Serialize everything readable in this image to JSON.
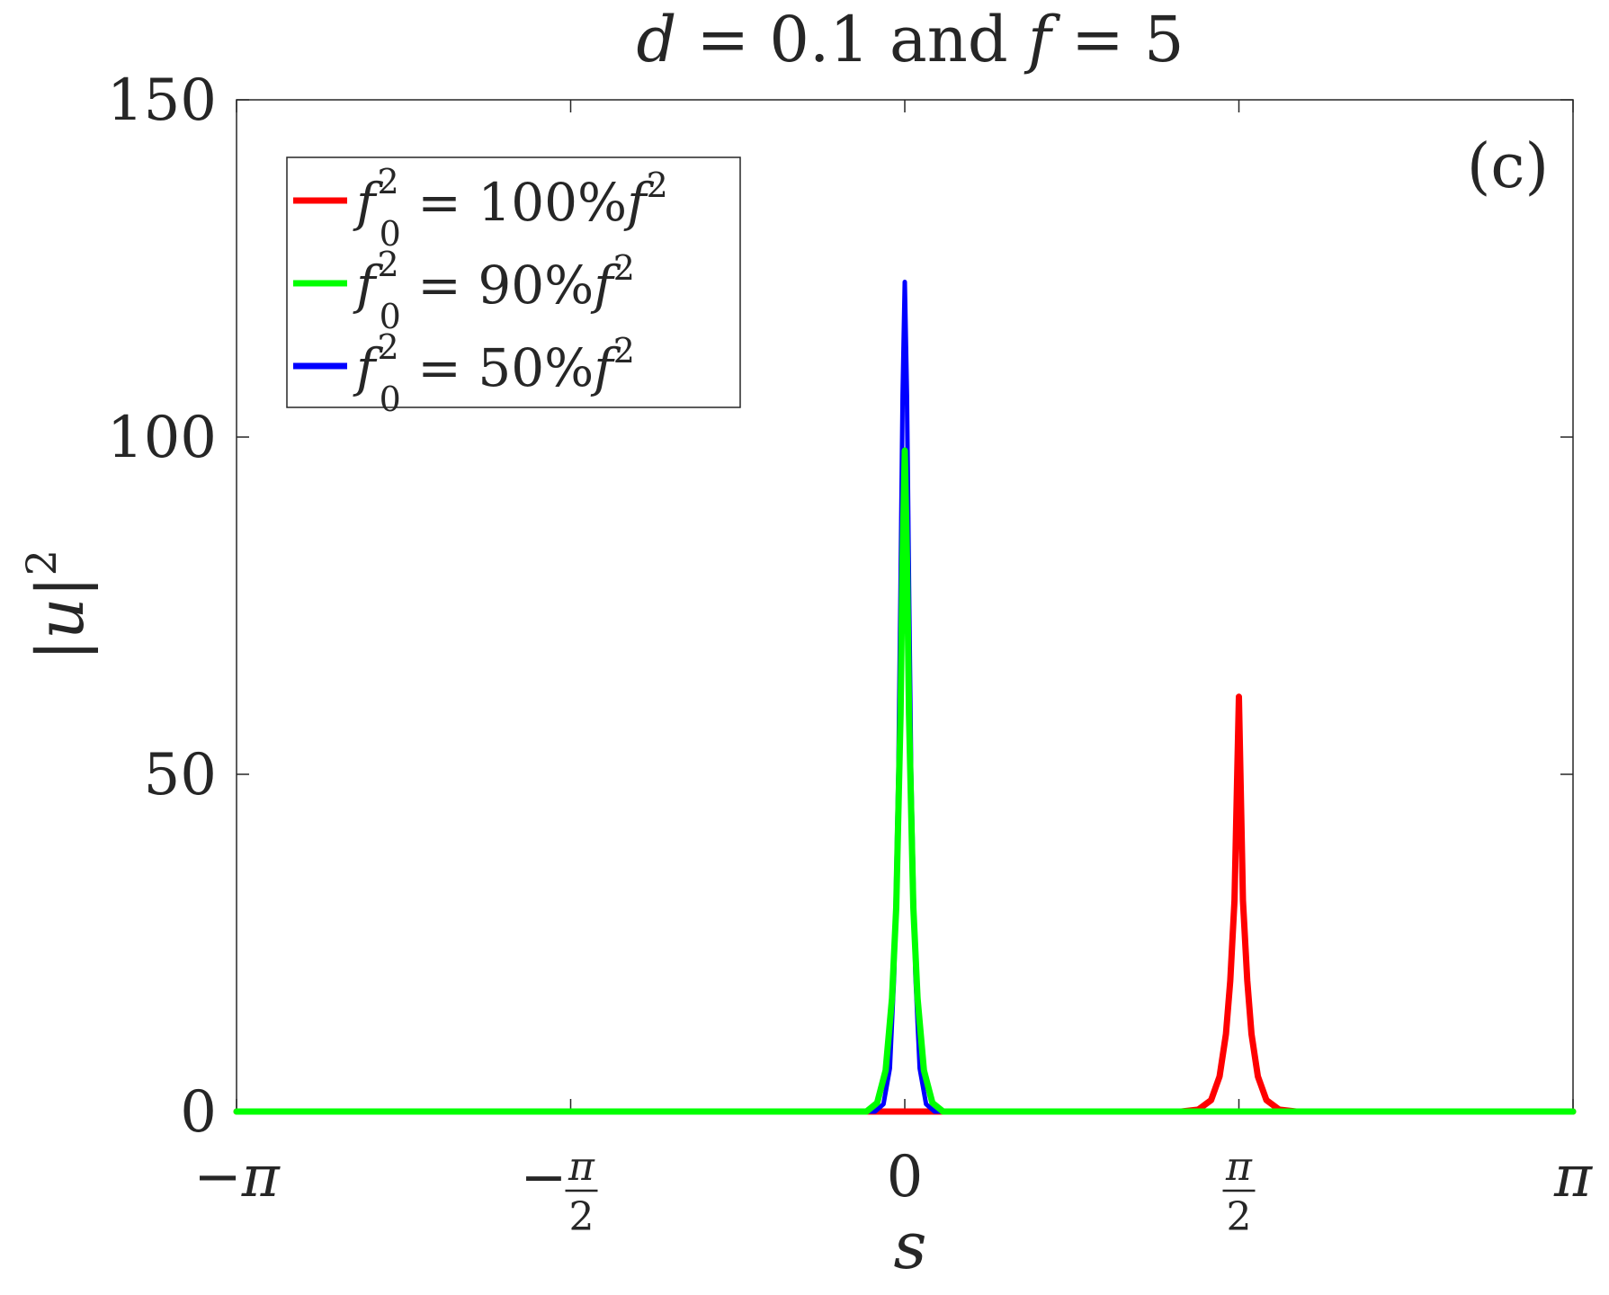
{
  "chart_data": {
    "type": "line",
    "title": {
      "prefix_var": "d",
      "prefix_eq": " = 0.1",
      "connector": " and ",
      "suffix_var": "f",
      "suffix_eq": " = 5"
    },
    "panel_label": "(c)",
    "xlabel": "s",
    "ylabel": {
      "base": "|u|",
      "exponent": "2"
    },
    "xlim": [
      -3.14159,
      3.14159
    ],
    "ylim": [
      0,
      150
    ],
    "xticks": [
      {
        "value": -3.14159,
        "label": "−π"
      },
      {
        "value": -1.5708,
        "label_sign": "−",
        "label_num": "π",
        "label_den": "2"
      },
      {
        "value": 0,
        "label": "0"
      },
      {
        "value": 1.5708,
        "label_num": "π",
        "label_den": "2"
      },
      {
        "value": 3.14159,
        "label": "π"
      }
    ],
    "yticks": [
      {
        "value": 0,
        "label": "0"
      },
      {
        "value": 50,
        "label": "50"
      },
      {
        "value": 100,
        "label": "100"
      },
      {
        "value": 150,
        "label": "150"
      }
    ],
    "grid": false,
    "legend_position": "top-left",
    "series": [
      {
        "name_var": "f",
        "name_sub": "0",
        "name_sup": "2",
        "name_rest": " = 100%",
        "name_var2": "f",
        "name_sup2": "2",
        "color": "#ff0000",
        "x": [
          -3.14159,
          1.3,
          1.38,
          1.44,
          1.48,
          1.51,
          1.53,
          1.55,
          1.5708,
          1.59,
          1.61,
          1.63,
          1.66,
          1.7,
          1.76,
          1.84,
          3.14159
        ],
        "y": [
          0,
          0,
          0.3,
          1.7,
          5.2,
          11.5,
          19.4,
          31.3,
          61.5,
          31.3,
          19.4,
          11.5,
          5.2,
          1.7,
          0.3,
          0,
          0
        ]
      },
      {
        "name_var": "f",
        "name_sub": "0",
        "name_sup": "2",
        "name_rest": " = 90%",
        "name_var2": "f",
        "name_sup2": "2",
        "color": "#00ff00",
        "x": [
          -3.14159,
          -0.18,
          -0.13,
          -0.09,
          -0.06,
          -0.04,
          -0.02,
          -0.01,
          0,
          0.01,
          0.02,
          0.04,
          0.06,
          0.09,
          0.13,
          0.18,
          3.14159
        ],
        "y": [
          0,
          0,
          1.3,
          6.1,
          16.8,
          30.3,
          58.9,
          82.1,
          98,
          82.1,
          58.9,
          30.3,
          16.8,
          6.1,
          1.3,
          0,
          0
        ]
      },
      {
        "name_var": "f",
        "name_sub": "0",
        "name_sup": "2",
        "name_rest": " = 50%",
        "name_var2": "f",
        "name_sup2": "2",
        "color": "#0000ff",
        "x": [
          -3.14159,
          -0.14,
          -0.1,
          -0.07,
          -0.05,
          -0.03,
          -0.02,
          -0.01,
          0,
          0.01,
          0.02,
          0.03,
          0.05,
          0.07,
          0.1,
          0.14,
          3.14159
        ],
        "y": [
          0,
          0,
          1.1,
          6.4,
          20.3,
          50.4,
          77.8,
          106.2,
          123,
          106.2,
          77.8,
          50.4,
          20.3,
          6.4,
          1.1,
          0,
          0
        ]
      }
    ]
  }
}
